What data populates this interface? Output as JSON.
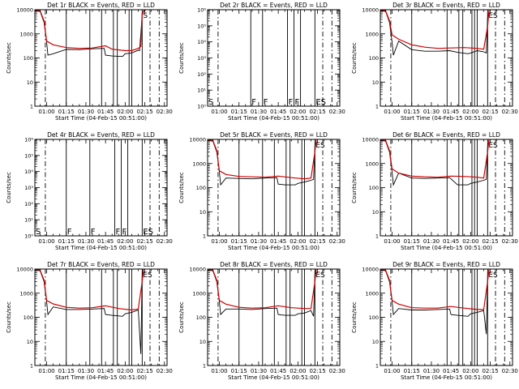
{
  "chart_data": [
    {
      "type": "line",
      "title": "Det 1r BLACK = Events, RED = LLD",
      "xlabel": "Start Time (04-Feb-15 00:51:00)",
      "ylabel": "Counts/sec",
      "yscale": "log",
      "ylim": [
        1,
        10000
      ],
      "yticks": [
        "1",
        "10",
        "100",
        "1000",
        "10000"
      ],
      "xlim": [
        "00:51",
        "02:32"
      ],
      "xticks": [
        "01:00",
        "01:15",
        "01:30",
        "01:45",
        "02:00",
        "02:15",
        "02:30"
      ],
      "series": [
        {
          "name": "Events",
          "color": "#000000",
          "x": [
            "00:51",
            "00:55",
            "00:58",
            "01:00",
            "01:01",
            "01:05",
            "01:15",
            "01:25",
            "01:35",
            "01:44",
            "01:45",
            "01:50",
            "01:58",
            "02:00",
            "02:05",
            "02:10",
            "02:11",
            "02:13",
            "02:14",
            "02:16"
          ],
          "y": [
            9000,
            8500,
            3000,
            450,
            130,
            150,
            225,
            220,
            240,
            250,
            130,
            120,
            115,
            150,
            160,
            210,
            200,
            6000,
            9000,
            10000
          ]
        },
        {
          "name": "LLD",
          "color": "#d00000",
          "x": [
            "00:51",
            "00:55",
            "00:58",
            "01:00",
            "01:05",
            "01:15",
            "01:25",
            "01:35",
            "01:45",
            "01:50",
            "02:00",
            "02:05",
            "02:10",
            "02:12",
            "02:13",
            "02:15"
          ],
          "y": [
            10000,
            9000,
            3500,
            500,
            350,
            270,
            250,
            260,
            320,
            230,
            200,
            200,
            250,
            300,
            7000,
            10000
          ]
        }
      ],
      "vlines": [
        "01:15",
        "01:33",
        "01:42",
        "01:51",
        "01:54",
        "02:03",
        "02:05",
        "02:13"
      ],
      "dashed_vlines": [
        "00:59",
        "02:19",
        "02:26"
      ],
      "annotations": [
        "S"
      ]
    },
    {
      "type": "line",
      "title": "Det 2r BLACK = Events, RED = LLD",
      "xlabel": "Start Time (04-Feb-15 00:51:00)",
      "ylabel": "Counts/sec",
      "yscale": "log",
      "ylim": [
        1,
        1000000
      ],
      "yticks": [
        "10⁰",
        "10¹",
        "10²",
        "10³",
        "10⁴",
        "10⁵",
        "10⁶"
      ],
      "xlim": [
        "00:51",
        "02:32"
      ],
      "xticks": [
        "01:00",
        "01:15",
        "01:30",
        "01:45",
        "02:00",
        "02:15",
        "02:30"
      ],
      "series": [],
      "vlines": [
        "01:24",
        "01:33",
        "01:52",
        "01:57",
        "02:02",
        "02:13"
      ],
      "dashed_vlines": [
        "00:59",
        "02:19",
        "02:26"
      ],
      "annotations": [
        "S",
        "F",
        "F",
        "F",
        "F",
        "ES"
      ]
    },
    {
      "type": "line",
      "title": "Det 3r BLACK = Events, RED = LLD",
      "xlabel": "Start Time (04-Feb-15 00:51:00)",
      "ylabel": "Counts/sec",
      "yscale": "log",
      "ylim": [
        1,
        10000
      ],
      "yticks": [
        "1",
        "10",
        "100",
        "1000",
        "10000"
      ],
      "xlim": [
        "00:51",
        "02:32"
      ],
      "xticks": [
        "01:00",
        "01:15",
        "01:30",
        "01:45",
        "02:00",
        "02:15",
        "02:30"
      ],
      "series": [
        {
          "name": "Events",
          "color": "#000000",
          "x": [
            "00:51",
            "00:55",
            "00:58",
            "01:00",
            "01:01",
            "01:05",
            "01:15",
            "01:25",
            "01:35",
            "01:44",
            "01:50",
            "01:58",
            "02:00",
            "02:05",
            "02:10",
            "02:12",
            "02:13",
            "02:14"
          ],
          "y": [
            9000,
            8500,
            3000,
            450,
            130,
            500,
            220,
            190,
            190,
            200,
            170,
            150,
            160,
            200,
            180,
            160,
            5000,
            8000
          ]
        },
        {
          "name": "LLD",
          "color": "#d00000",
          "x": [
            "00:51",
            "00:55",
            "00:58",
            "01:00",
            "01:05",
            "01:15",
            "01:25",
            "01:35",
            "01:45",
            "01:55",
            "02:05",
            "02:10",
            "02:13",
            "02:14"
          ],
          "y": [
            10000,
            9000,
            3500,
            900,
            600,
            350,
            280,
            250,
            260,
            270,
            250,
            230,
            2000,
            10000
          ]
        }
      ],
      "vlines": [
        "01:15",
        "01:42",
        "01:51",
        "01:54",
        "02:01",
        "02:03",
        "02:05",
        "02:13"
      ],
      "dashed_vlines": [
        "00:59",
        "02:19",
        "02:26"
      ],
      "annotations": [
        "ES"
      ]
    },
    {
      "type": "line",
      "title": "Det 4r BLACK = Events, RED = LLD",
      "xlabel": "Start Time (04-Feb-15 00:51:00)",
      "ylabel": "Counts/sec",
      "yscale": "log",
      "ylim": [
        1,
        1000000
      ],
      "yticks": [
        "10⁰",
        "10¹",
        "10²",
        "10³",
        "10⁴",
        "10⁵",
        "10⁶"
      ],
      "xlim": [
        "00:51",
        "02:32"
      ],
      "xticks": [
        "01:00",
        "01:15",
        "01:30",
        "01:45",
        "02:00",
        "02:15",
        "02:30"
      ],
      "series": [],
      "vlines": [
        "01:15",
        "01:33",
        "01:52",
        "01:57",
        "02:02",
        "02:13"
      ],
      "dashed_vlines": [
        "00:59",
        "02:19",
        "02:26"
      ],
      "annotations": [
        "S",
        "F",
        "F",
        "F",
        "F",
        "ES"
      ]
    },
    {
      "type": "line",
      "title": "Det 5r BLACK = Events, RED = LLD",
      "xlabel": "Start Time (04-Feb-15 00:51:00)",
      "ylabel": "Counts/sec",
      "yscale": "log",
      "ylim": [
        1,
        10000
      ],
      "yticks": [
        "1",
        "10",
        "100",
        "1000",
        "10000"
      ],
      "xlim": [
        "00:51",
        "02:32"
      ],
      "xticks": [
        "01:00",
        "01:15",
        "01:30",
        "01:45",
        "02:00",
        "02:15",
        "02:30"
      ],
      "series": [
        {
          "name": "Events",
          "color": "#000000",
          "x": [
            "00:51",
            "00:55",
            "00:58",
            "01:00",
            "01:01",
            "01:05",
            "01:15",
            "01:25",
            "01:35",
            "01:44",
            "01:45",
            "01:50",
            "01:58",
            "02:00",
            "02:05",
            "02:10",
            "02:12",
            "02:13",
            "02:14"
          ],
          "y": [
            9000,
            8500,
            3000,
            450,
            130,
            250,
            240,
            230,
            250,
            260,
            140,
            130,
            130,
            150,
            170,
            200,
            220,
            5000,
            9000
          ]
        },
        {
          "name": "LLD",
          "color": "#d00000",
          "x": [
            "00:51",
            "00:55",
            "00:58",
            "01:00",
            "01:05",
            "01:15",
            "01:25",
            "01:35",
            "01:45",
            "01:55",
            "02:05",
            "02:10",
            "02:13",
            "02:14"
          ],
          "y": [
            10000,
            9000,
            3500,
            500,
            350,
            290,
            280,
            270,
            300,
            260,
            230,
            250,
            3000,
            10000
          ]
        }
      ],
      "vlines": [
        "01:15",
        "01:33",
        "01:42",
        "01:51",
        "01:54",
        "02:03",
        "02:05",
        "02:13"
      ],
      "dashed_vlines": [
        "00:59",
        "02:19",
        "02:26"
      ],
      "annotations": [
        "ES"
      ]
    },
    {
      "type": "line",
      "title": "Det 6r BLACK = Events, RED = LLD",
      "xlabel": "Start Time (04-Feb-15 00:51:00)",
      "ylabel": "Counts/sec",
      "yscale": "log",
      "ylim": [
        1,
        10000
      ],
      "yticks": [
        "1",
        "10",
        "100",
        "1000",
        "10000"
      ],
      "xlim": [
        "00:51",
        "02:32"
      ],
      "xticks": [
        "01:00",
        "01:15",
        "01:30",
        "01:45",
        "02:00",
        "02:15",
        "02:30"
      ],
      "series": [
        {
          "name": "Events",
          "color": "#000000",
          "x": [
            "00:51",
            "00:55",
            "00:58",
            "01:00",
            "01:01",
            "01:05",
            "01:15",
            "01:25",
            "01:35",
            "01:44",
            "01:50",
            "01:58",
            "02:00",
            "02:05",
            "02:10",
            "02:12",
            "02:13",
            "02:14"
          ],
          "y": [
            9000,
            8500,
            3000,
            450,
            130,
            400,
            250,
            240,
            250,
            260,
            130,
            130,
            150,
            170,
            200,
            220,
            5000,
            9000
          ]
        },
        {
          "name": "LLD",
          "color": "#d00000",
          "x": [
            "00:51",
            "00:55",
            "00:58",
            "01:00",
            "01:05",
            "01:15",
            "01:25",
            "01:35",
            "01:45",
            "01:55",
            "02:05",
            "02:10",
            "02:13",
            "02:14"
          ],
          "y": [
            10000,
            9000,
            3500,
            600,
            400,
            300,
            280,
            270,
            300,
            290,
            270,
            250,
            3000,
            10000
          ]
        }
      ],
      "vlines": [
        "01:15",
        "01:42",
        "01:51",
        "01:54",
        "02:01",
        "02:03",
        "02:05",
        "02:13"
      ],
      "dashed_vlines": [
        "00:59",
        "02:19",
        "02:26"
      ],
      "annotations": [
        "ES"
      ]
    },
    {
      "type": "line",
      "title": "Det 7r BLACK = Events, RED = LLD",
      "xlabel": "Start Time (04-Feb-15 00:51:00)",
      "ylabel": "Counts/sec",
      "yscale": "log",
      "ylim": [
        1,
        10000
      ],
      "yticks": [
        "1",
        "10",
        "100",
        "1000",
        "10000"
      ],
      "xlim": [
        "00:51",
        "02:32"
      ],
      "xticks": [
        "01:00",
        "01:15",
        "01:30",
        "01:45",
        "02:00",
        "02:15",
        "02:30"
      ],
      "series": [
        {
          "name": "Events",
          "color": "#000000",
          "x": [
            "00:51",
            "00:55",
            "00:58",
            "01:00",
            "01:01",
            "01:05",
            "01:15",
            "01:25",
            "01:35",
            "01:44",
            "01:45",
            "01:50",
            "01:58",
            "02:00",
            "02:05",
            "02:10",
            "02:12",
            "02:13",
            "02:14"
          ],
          "y": [
            9000,
            8500,
            3000,
            450,
            130,
            270,
            210,
            210,
            220,
            230,
            130,
            120,
            110,
            140,
            160,
            200,
            3,
            6000,
            10000
          ]
        },
        {
          "name": "LLD",
          "color": "#d00000",
          "x": [
            "00:51",
            "00:55",
            "00:58",
            "01:00",
            "01:05",
            "01:15",
            "01:25",
            "01:35",
            "01:45",
            "01:55",
            "02:05",
            "02:10",
            "02:13",
            "02:14"
          ],
          "y": [
            10000,
            9000,
            3500,
            500,
            360,
            260,
            240,
            250,
            300,
            230,
            200,
            220,
            3000,
            10000
          ]
        }
      ],
      "vlines": [
        "01:15",
        "01:33",
        "01:42",
        "01:51",
        "01:54",
        "02:03",
        "02:05",
        "02:13"
      ],
      "dashed_vlines": [
        "00:59",
        "02:19",
        "02:26"
      ],
      "annotations": [
        "ES"
      ]
    },
    {
      "type": "line",
      "title": "Det 8r BLACK = Events, RED = LLD",
      "xlabel": "Start Time (04-Feb-15 00:51:00)",
      "ylabel": "Counts/sec",
      "yscale": "log",
      "ylim": [
        1,
        10000
      ],
      "yticks": [
        "1",
        "10",
        "100",
        "1000",
        "10000"
      ],
      "xlim": [
        "00:51",
        "02:32"
      ],
      "xticks": [
        "01:00",
        "01:15",
        "01:30",
        "01:45",
        "02:00",
        "02:15",
        "02:30"
      ],
      "series": [
        {
          "name": "Events",
          "color": "#000000",
          "x": [
            "00:51",
            "00:55",
            "00:58",
            "01:00",
            "01:01",
            "01:05",
            "01:15",
            "01:25",
            "01:35",
            "01:44",
            "01:45",
            "01:50",
            "01:58",
            "02:00",
            "02:05",
            "02:10",
            "02:12",
            "02:13",
            "02:14"
          ],
          "y": [
            9000,
            8500,
            3000,
            450,
            130,
            220,
            220,
            210,
            230,
            240,
            130,
            120,
            120,
            140,
            150,
            190,
            110,
            6000,
            10000
          ]
        },
        {
          "name": "LLD",
          "color": "#d00000",
          "x": [
            "00:51",
            "00:55",
            "00:58",
            "01:00",
            "01:05",
            "01:15",
            "01:25",
            "01:35",
            "01:45",
            "01:55",
            "02:05",
            "02:10",
            "02:13",
            "02:14"
          ],
          "y": [
            10000,
            9000,
            3500,
            500,
            350,
            260,
            240,
            250,
            300,
            250,
            230,
            230,
            3000,
            10000
          ]
        }
      ],
      "vlines": [
        "01:15",
        "01:33",
        "01:42",
        "01:51",
        "01:54",
        "02:03",
        "02:05",
        "02:13"
      ],
      "dashed_vlines": [
        "00:59",
        "02:19",
        "02:26"
      ],
      "annotations": [
        "ES"
      ]
    },
    {
      "type": "line",
      "title": "Det 9r BLACK = Events, RED = LLD",
      "xlabel": "Start Time (04-Feb-15 00:51:00)",
      "ylabel": "Counts/sec",
      "yscale": "log",
      "ylim": [
        1,
        10000
      ],
      "yticks": [
        "1",
        "10",
        "100",
        "1000",
        "10000"
      ],
      "xlim": [
        "00:51",
        "02:32"
      ],
      "xticks": [
        "01:00",
        "01:15",
        "01:30",
        "01:45",
        "02:00",
        "02:15",
        "02:30"
      ],
      "series": [
        {
          "name": "Events",
          "color": "#000000",
          "x": [
            "00:51",
            "00:55",
            "00:58",
            "01:00",
            "01:01",
            "01:05",
            "01:15",
            "01:25",
            "01:35",
            "01:44",
            "01:45",
            "01:50",
            "01:58",
            "02:00",
            "02:05",
            "02:10",
            "02:12",
            "02:13",
            "02:14"
          ],
          "y": [
            9000,
            8500,
            3000,
            450,
            130,
            230,
            200,
            200,
            210,
            220,
            130,
            120,
            110,
            140,
            160,
            190,
            20,
            5000,
            9000
          ]
        },
        {
          "name": "LLD",
          "color": "#d00000",
          "x": [
            "00:51",
            "00:55",
            "00:58",
            "01:00",
            "01:05",
            "01:15",
            "01:25",
            "01:35",
            "01:45",
            "01:55",
            "02:05",
            "02:10",
            "02:13",
            "02:14"
          ],
          "y": [
            10000,
            9000,
            3500,
            500,
            350,
            250,
            240,
            240,
            280,
            240,
            210,
            210,
            3000,
            10000
          ]
        }
      ],
      "vlines": [
        "01:15",
        "01:42",
        "01:51",
        "01:54",
        "02:01",
        "02:03",
        "02:05",
        "02:13"
      ],
      "dashed_vlines": [
        "00:59",
        "02:19",
        "02:26"
      ],
      "annotations": [
        "ES"
      ]
    }
  ]
}
